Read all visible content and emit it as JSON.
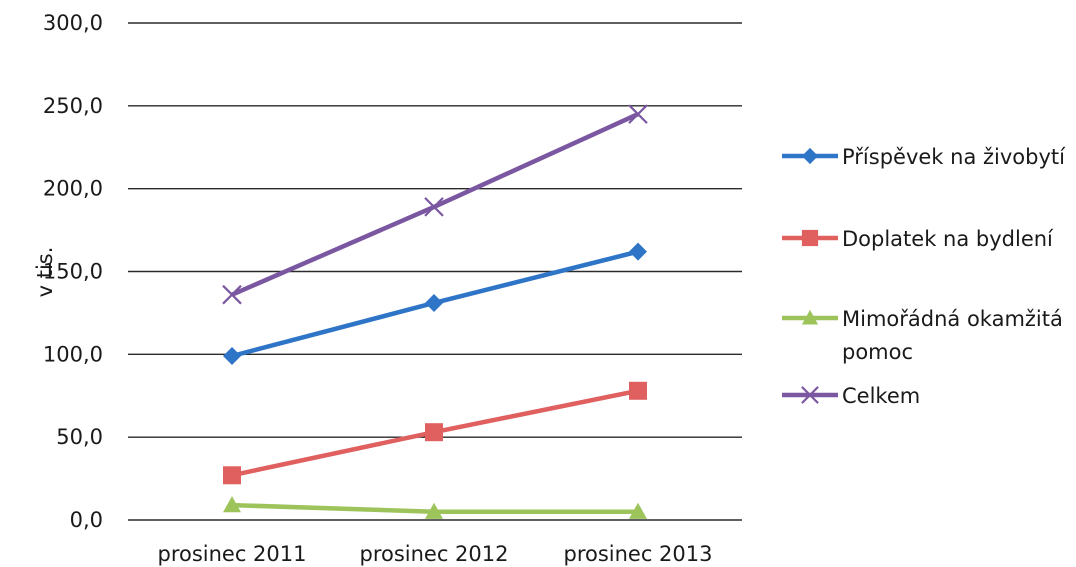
{
  "chart_data": {
    "type": "line",
    "categories": [
      "prosinec 2011",
      "prosinec 2012",
      "prosinec 2013"
    ],
    "ylabel": "v tis.",
    "xlabel": "",
    "title": "",
    "ylim": [
      0,
      300
    ],
    "yticks": [
      "0,0",
      "50,0",
      "100,0",
      "150,0",
      "200,0",
      "250,0",
      "300,0"
    ],
    "grid": true,
    "legend_position": "right",
    "series": [
      {
        "name": "Příspěvek na živobytí",
        "legend_lines": [
          "Příspěvek na živobytí"
        ],
        "values": [
          99,
          131,
          162
        ],
        "color": "#2e75c8",
        "marker": "diamond"
      },
      {
        "name": "Doplatek na bydlení",
        "legend_lines": [
          "Doplatek na bydlení"
        ],
        "values": [
          27,
          53,
          78
        ],
        "color": "#e06060",
        "marker": "square"
      },
      {
        "name": "Mimořádná okamžitá pomoc",
        "legend_lines": [
          "Mimořádná okamžitá",
          "pomoc"
        ],
        "values": [
          9,
          5,
          5
        ],
        "color": "#9cc45a",
        "marker": "triangle"
      },
      {
        "name": "Celkem",
        "legend_lines": [
          "Celkem"
        ],
        "values": [
          136,
          189,
          245
        ],
        "color": "#7a57a0",
        "marker": "x"
      }
    ]
  }
}
